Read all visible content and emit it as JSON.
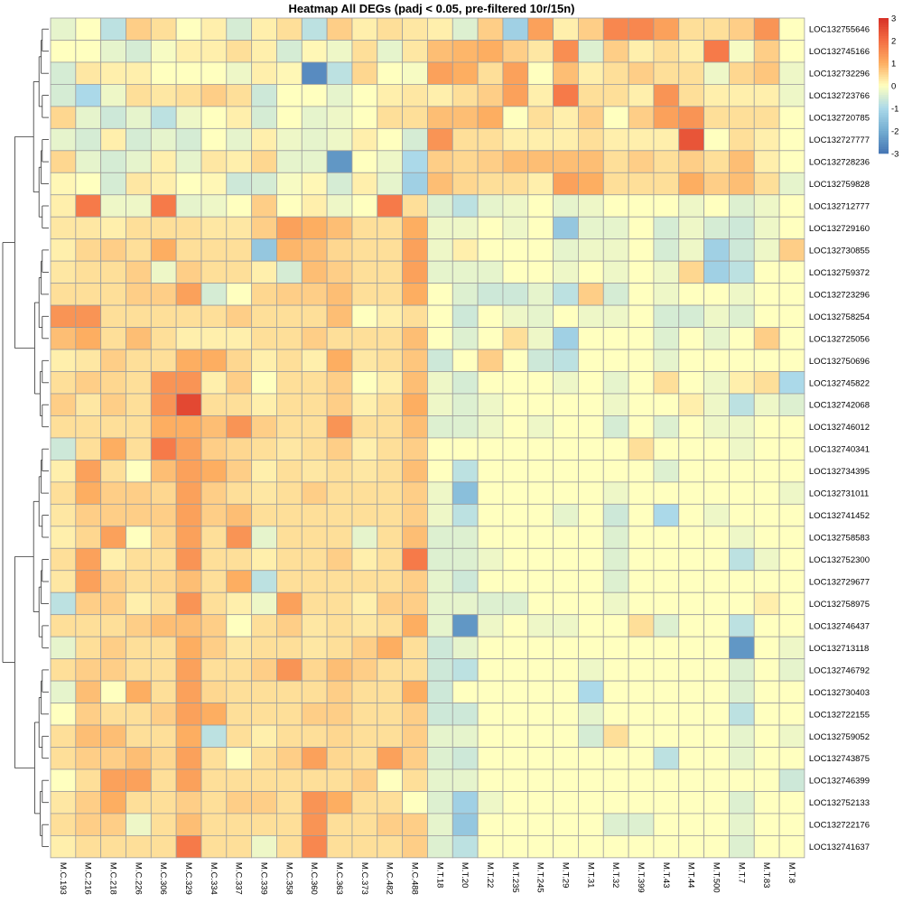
{
  "chart_data": {
    "type": "heatmap",
    "title": "Heatmap All DEGs (padj < 0.05, pre-filtered 10r/15n)",
    "columns": [
      "M.C.193",
      "M.C.216",
      "M.C.218",
      "M.C.226",
      "M.C.306",
      "M.C.329",
      "M.C.334",
      "M.C.337",
      "M.C.339",
      "M.C.358",
      "M.C.360",
      "M.C.363",
      "M.C.373",
      "M.C.482",
      "M.C.488",
      "M.T.18",
      "M.T.20",
      "M.T.22",
      "M.T.235",
      "M.T.245",
      "M.T.29",
      "M.T.31",
      "M.T.32",
      "M.T.399",
      "M.T.43",
      "M.T.44",
      "M.T.500",
      "M.T.7",
      "M.T.83",
      "M.T.8"
    ],
    "rows": [
      "LOC132755646",
      "LOC132745166",
      "LOC132732296",
      "LOC132723766",
      "LOC132720785",
      "LOC132727777",
      "LOC132728236",
      "LOC132759828",
      "LOC132712777",
      "LOC132729160",
      "LOC132730855",
      "LOC132759372",
      "LOC132723296",
      "LOC132758254",
      "LOC132725056",
      "LOC132750696",
      "LOC132745822",
      "LOC132742068",
      "LOC132746012",
      "LOC132740341",
      "LOC132734395",
      "LOC132731011",
      "LOC132741452",
      "LOC132758583",
      "LOC132752300",
      "LOC132729677",
      "LOC132758975",
      "LOC132746437",
      "LOC132713118",
      "LOC132746792",
      "LOC132730403",
      "LOC132722155",
      "LOC132759052",
      "LOC132743875",
      "LOC132746399",
      "LOC132752133",
      "LOC132722176",
      "LOC132741637"
    ],
    "values": [
      [
        -0.3,
        0,
        -0.8,
        0.6,
        0.4,
        0,
        0.2,
        -0.5,
        0.2,
        0.4,
        -0.8,
        0.6,
        0.2,
        0.4,
        0.3,
        0.2,
        -0.4,
        0.6,
        -1.2,
        1.2,
        0.2,
        0.6,
        1.6,
        1.6,
        1.2,
        0.4,
        0.4,
        0.6,
        1.4,
        0
      ],
      [
        0,
        0,
        -0.3,
        -0.5,
        -0.1,
        0.2,
        0.2,
        0.4,
        0.2,
        -0.5,
        0.1,
        -0.2,
        0.4,
        -0.3,
        0.3,
        0.8,
        0.9,
        1.0,
        0.6,
        0.3,
        1.5,
        -0.4,
        0.6,
        0.2,
        0.4,
        0.2,
        1.8,
        -0.1,
        0.6,
        0
      ],
      [
        -0.5,
        0.3,
        0.2,
        0.2,
        0,
        0,
        0,
        -0.2,
        0.2,
        0.1,
        -2.6,
        -0.8,
        0.5,
        0,
        -0.1,
        1.2,
        1.0,
        0.4,
        1.2,
        0,
        0.8,
        0.2,
        0.4,
        0.6,
        0.4,
        0.4,
        -0.2,
        0.5,
        0.7,
        -0.2
      ],
      [
        -0.5,
        -1.0,
        -0.2,
        0.4,
        0.3,
        0.4,
        0.6,
        0.4,
        -0.6,
        0,
        0,
        -0.3,
        0,
        0.2,
        0.3,
        0.2,
        0.4,
        0.6,
        1.2,
        0.2,
        1.8,
        0.4,
        0.4,
        0.2,
        1.4,
        0.4,
        0.2,
        0.2,
        0.2,
        -0.2
      ],
      [
        0.5,
        -0.3,
        -0.6,
        -0.3,
        -0.8,
        -0.2,
        0,
        0.2,
        -0.5,
        0,
        -0.3,
        -0.2,
        0,
        0.4,
        0.4,
        0.8,
        0.8,
        1.0,
        0,
        0.4,
        0.2,
        0.6,
        0,
        0.6,
        1.2,
        1.4,
        0.4,
        0.4,
        0.4,
        0
      ],
      [
        -0.3,
        -0.5,
        0.2,
        -0.5,
        -0.3,
        -0.5,
        0,
        -0.3,
        0.2,
        -0.2,
        -0.3,
        -0.2,
        0.2,
        0,
        -0.5,
        1.4,
        0.4,
        0.4,
        0.2,
        0.2,
        0.2,
        0.4,
        0.2,
        0.2,
        0.2,
        2.4,
        0,
        0.4,
        0.2,
        0
      ],
      [
        0.5,
        -0.3,
        -0.5,
        -0.3,
        0.2,
        -0.3,
        0.3,
        0.2,
        0.5,
        -0.3,
        -0.3,
        -2.4,
        0,
        -0.2,
        -1.0,
        0.6,
        0.5,
        0.6,
        0.8,
        0.8,
        0.8,
        0.8,
        0.4,
        0.6,
        0.4,
        0.6,
        0.4,
        0.8,
        0.2,
        0
      ],
      [
        0.1,
        0,
        -0.5,
        0.3,
        0.2,
        0,
        0.1,
        -0.6,
        -0.5,
        -0.1,
        0.1,
        -0.5,
        0.2,
        -0.3,
        -1.2,
        0.8,
        0.5,
        0.4,
        0.4,
        0.2,
        1.2,
        1.0,
        0.4,
        0.4,
        0.4,
        1.0,
        0.6,
        0.8,
        0.4,
        -0.3
      ],
      [
        0.2,
        1.8,
        -0.2,
        -0.2,
        1.8,
        -0.3,
        -0.2,
        0,
        0.6,
        0,
        0.2,
        -0.2,
        0,
        1.8,
        0.4,
        -0.4,
        -0.8,
        -0.3,
        -0.2,
        0,
        -0.3,
        -0.2,
        0,
        0,
        0,
        -0.2,
        0,
        -0.4,
        -0.2,
        0
      ],
      [
        0.3,
        0.3,
        0.2,
        0.4,
        0.4,
        0.4,
        0.3,
        0.3,
        0.6,
        1.2,
        1.0,
        0.8,
        0.4,
        0.4,
        1.0,
        -0.2,
        -0.2,
        0,
        -0.2,
        0,
        -1.4,
        -0.3,
        -0.3,
        0,
        -0.5,
        -0.2,
        -0.5,
        -0.6,
        -0.2,
        0
      ],
      [
        0.2,
        0.5,
        0.6,
        0.4,
        1.0,
        0.4,
        0.4,
        0.4,
        -1.4,
        0.9,
        0.8,
        0.5,
        0.4,
        0.4,
        1.2,
        -0.2,
        0.2,
        0,
        0,
        0,
        -0.3,
        -0.2,
        -0.2,
        0,
        -0.5,
        -0.2,
        -1.2,
        -0.6,
        -0.2,
        0.6
      ],
      [
        0.3,
        0.4,
        0.4,
        0.6,
        -0.2,
        0.6,
        0.4,
        0.4,
        0.2,
        -0.5,
        0.8,
        0.6,
        0.4,
        0.4,
        1.2,
        -0.3,
        -0.3,
        -0.3,
        0,
        0,
        -0.2,
        0,
        -0.2,
        0,
        -0.2,
        0.5,
        -1.2,
        -0.8,
        0,
        0
      ],
      [
        0.4,
        0.4,
        0.4,
        0.6,
        0.6,
        1.2,
        -0.5,
        0,
        0.5,
        0.6,
        0.6,
        0.8,
        0.4,
        0.4,
        1.0,
        0,
        -0.4,
        -0.6,
        -0.6,
        -0.3,
        -0.8,
        0.6,
        -0.5,
        0,
        -0.2,
        0,
        0,
        -0.2,
        0,
        0
      ],
      [
        1.4,
        1.4,
        0.4,
        0.4,
        0.4,
        0.4,
        0.4,
        0.6,
        0.4,
        0.4,
        0.4,
        0.8,
        0,
        0.2,
        0.4,
        0,
        -0.6,
        0,
        -0.2,
        -0.3,
        0,
        -0.2,
        -0.2,
        0,
        -0.5,
        -0.5,
        -0.2,
        -0.4,
        0,
        0
      ],
      [
        0.8,
        1.0,
        0.4,
        0.8,
        0.4,
        0.2,
        0.2,
        0.2,
        0.4,
        0.4,
        0.6,
        0.4,
        0.4,
        0.4,
        0.8,
        0,
        -0.4,
        0,
        0.4,
        -0.2,
        -1.2,
        0,
        0,
        0,
        -0.4,
        0,
        -0.3,
        0,
        0.6,
        0
      ],
      [
        0.2,
        0.3,
        0.6,
        0.4,
        0.4,
        1.0,
        1.0,
        0.5,
        0.2,
        0.4,
        0.2,
        1.0,
        0.3,
        0.4,
        0.7,
        -0.6,
        0,
        0.6,
        0,
        -0.6,
        -0.8,
        0,
        0,
        0,
        -0.3,
        0,
        0,
        0,
        0,
        0
      ],
      [
        0.4,
        0.6,
        0.5,
        0.4,
        1.4,
        1.4,
        0.2,
        0.6,
        0,
        0.4,
        0.4,
        0.6,
        0,
        0.2,
        0.8,
        -0.2,
        -0.5,
        0,
        0,
        0,
        -0.2,
        0,
        -0.3,
        0,
        0.4,
        0,
        -0.2,
        0.2,
        0.4,
        -1.0
      ],
      [
        0.6,
        0.3,
        0.6,
        0.4,
        1.4,
        2.6,
        0.4,
        0.4,
        0.2,
        0.4,
        0.4,
        0.6,
        0.2,
        0.4,
        1.0,
        -0.2,
        -0.4,
        -0.2,
        0,
        0,
        0,
        0,
        -0.2,
        0,
        0,
        0.2,
        -0.2,
        -0.8,
        -0.2,
        -0.4
      ],
      [
        0.4,
        0.4,
        0.4,
        0.4,
        1.0,
        1.0,
        0.8,
        1.4,
        0.6,
        0.4,
        0.4,
        1.4,
        0.4,
        0.4,
        0.8,
        -0.4,
        -0.4,
        -0.2,
        0,
        -0.2,
        0,
        0,
        -0.5,
        0,
        -0.4,
        0,
        -0.2,
        -0.2,
        0,
        0
      ],
      [
        -0.6,
        0.4,
        1.0,
        0.4,
        1.8,
        1.2,
        0.6,
        0.5,
        0.4,
        0.3,
        0.4,
        0.6,
        0.2,
        0.4,
        0.6,
        0,
        0,
        0,
        0,
        0,
        0,
        0,
        0,
        0.4,
        0,
        0,
        0,
        -0.2,
        0,
        0
      ],
      [
        0.2,
        1.2,
        0.4,
        0,
        0.8,
        1.2,
        1.0,
        0.6,
        0.2,
        0.4,
        0.3,
        0.4,
        0.3,
        0.4,
        0.8,
        0,
        -0.8,
        0,
        0,
        0,
        0,
        0,
        0,
        0,
        -0.4,
        0,
        0,
        0,
        0,
        0
      ],
      [
        0.4,
        1.0,
        0.6,
        0.6,
        0.5,
        1.2,
        0.6,
        0.4,
        0.3,
        0.4,
        0.6,
        0.4,
        0.4,
        0.4,
        0.6,
        -0.2,
        -1.6,
        0,
        0,
        0,
        0,
        0,
        -0.2,
        0,
        0,
        0,
        0,
        0,
        0,
        -0.2
      ],
      [
        0.3,
        0.6,
        0.6,
        0.6,
        0.6,
        1.2,
        0.6,
        0.8,
        0.4,
        0.4,
        0.4,
        0.4,
        0.4,
        0.4,
        0.6,
        -0.2,
        -0.8,
        0,
        0,
        0,
        -0.3,
        0,
        -0.6,
        0,
        -1.0,
        0,
        -0.2,
        0,
        0,
        0
      ],
      [
        0.2,
        0.5,
        1.2,
        0,
        0.5,
        1.2,
        0.4,
        1.4,
        -0.3,
        0.4,
        0.4,
        0.4,
        -0.3,
        0.4,
        0.8,
        -0.4,
        -0.4,
        0,
        0,
        0,
        0,
        0,
        -0.4,
        0,
        0,
        0,
        0,
        -0.2,
        0,
        0
      ],
      [
        0.4,
        1.2,
        0.2,
        0.4,
        0.4,
        1.4,
        0.4,
        0.4,
        0.2,
        0.4,
        0.4,
        0.6,
        0.2,
        0.4,
        1.8,
        -0.4,
        -0.4,
        -0.2,
        0,
        0,
        0,
        0,
        -0.4,
        0,
        0,
        0,
        0,
        -0.8,
        -0.2,
        0
      ],
      [
        0.3,
        1.2,
        0.6,
        0.4,
        0.5,
        0.8,
        0.4,
        1.0,
        -0.8,
        0.4,
        0.4,
        0.4,
        0.4,
        0.4,
        0.6,
        -0.3,
        -0.6,
        0,
        0,
        0,
        0,
        0,
        -0.4,
        0,
        0,
        0,
        0,
        0,
        0,
        0
      ],
      [
        -0.8,
        0.6,
        0.6,
        0.2,
        0.4,
        1.4,
        0.4,
        0.2,
        -0.2,
        1.2,
        0.4,
        0.4,
        0.2,
        0.6,
        0.6,
        -0.3,
        -0.3,
        -0.4,
        -0.4,
        0,
        0,
        0,
        -0.2,
        0,
        0,
        0,
        0,
        0,
        0.2,
        0
      ],
      [
        0.4,
        0.4,
        0.4,
        0.6,
        0.8,
        0.8,
        0.6,
        0,
        0.4,
        0.6,
        0.3,
        0.4,
        0.3,
        0.4,
        1.0,
        -0.3,
        -2.4,
        -0.2,
        0,
        -0.2,
        -0.2,
        0,
        0,
        0.4,
        -0.4,
        0,
        0,
        -0.8,
        0,
        0
      ],
      [
        -0.3,
        0.4,
        0.6,
        0.4,
        0.4,
        1.0,
        0.6,
        0.3,
        0.4,
        0.4,
        0.3,
        0.4,
        0.6,
        1.0,
        0.4,
        -0.6,
        -0.3,
        0,
        0,
        0,
        0,
        0,
        0,
        0,
        0,
        0,
        0,
        -2.4,
        0,
        -0.2
      ],
      [
        0.4,
        0.6,
        0.6,
        0.4,
        0.4,
        1.2,
        0.4,
        0.4,
        0.6,
        1.4,
        0.5,
        0.8,
        0.6,
        0.4,
        0.4,
        -0.6,
        -0.8,
        0,
        0,
        0,
        0,
        -0.2,
        0,
        0,
        0,
        0,
        0,
        -0.4,
        0,
        -0.3
      ],
      [
        -0.3,
        0.8,
        0,
        1.0,
        0.4,
        1.2,
        0.5,
        0.4,
        0.4,
        0.4,
        0.4,
        0.6,
        0.4,
        0.4,
        1.0,
        -0.6,
        0,
        0,
        0,
        0,
        0,
        -1.0,
        0,
        0,
        0,
        0,
        0,
        -0.4,
        0,
        0
      ],
      [
        0,
        0.6,
        0.4,
        0.4,
        0.6,
        1.2,
        1.0,
        0.4,
        0.4,
        0.4,
        0.6,
        0.6,
        0.4,
        0.4,
        0.6,
        -0.6,
        -0.6,
        0,
        0,
        0,
        0,
        -0.3,
        0,
        0,
        0,
        0,
        0,
        -0.8,
        0,
        0
      ],
      [
        0.4,
        0.8,
        0.8,
        0.4,
        0.4,
        1.0,
        -0.8,
        0.4,
        0.2,
        0.4,
        0.4,
        0.5,
        0.4,
        0.4,
        0.6,
        -0.3,
        -0.3,
        0,
        0,
        0,
        0,
        -0.5,
        0.4,
        0,
        0,
        0,
        0,
        -0.3,
        0,
        -0.2
      ],
      [
        0.4,
        0.6,
        0.6,
        0.8,
        0.5,
        1.2,
        0.4,
        0,
        0.4,
        0.6,
        1.2,
        0.5,
        0.4,
        1.2,
        0.6,
        -0.4,
        -0.6,
        0,
        0,
        0,
        0,
        0,
        0,
        0,
        -0.8,
        0,
        0,
        -0.3,
        0,
        0
      ],
      [
        0,
        0.4,
        1.2,
        1.2,
        0.4,
        1.2,
        0.4,
        0.4,
        0.4,
        0.4,
        0.4,
        0.4,
        0.6,
        0,
        0.4,
        -0.3,
        -0.3,
        0,
        0,
        0,
        0,
        0,
        0,
        0,
        0,
        0,
        0,
        0,
        0,
        -0.6
      ],
      [
        0.3,
        0.6,
        1.0,
        0.4,
        0.4,
        0.6,
        0.4,
        0.6,
        0.6,
        0.4,
        1.4,
        1.0,
        0.4,
        0.4,
        0,
        -0.4,
        -1.2,
        -0.2,
        0,
        0,
        0,
        0,
        0,
        0,
        0,
        0,
        0,
        -0.4,
        0,
        0
      ],
      [
        0.4,
        0.6,
        0.6,
        -0.2,
        0.4,
        0.8,
        0.4,
        0.4,
        0.4,
        0.4,
        1.4,
        0.4,
        0.4,
        0.6,
        0.6,
        -0.3,
        -1.4,
        0,
        0,
        0,
        0,
        0,
        -0.4,
        -0.4,
        0,
        0,
        0,
        -0.3,
        0,
        0
      ],
      [
        0.2,
        0.4,
        0.4,
        0.4,
        0.4,
        1.8,
        0.4,
        0.4,
        -0.2,
        0.4,
        1.6,
        0.4,
        0.4,
        0.4,
        0.6,
        -0.4,
        -0.8,
        0,
        0,
        0,
        0,
        0,
        0,
        0,
        0,
        0,
        0,
        -0.4,
        0,
        0
      ]
    ],
    "colorbar": {
      "ticks": [
        3,
        2,
        1,
        0,
        -1,
        -2,
        -3
      ],
      "min": -3,
      "max": 3
    },
    "colors": {
      "low": "#4575b4",
      "mid": "#ffffbf",
      "high": "#d73027"
    }
  }
}
